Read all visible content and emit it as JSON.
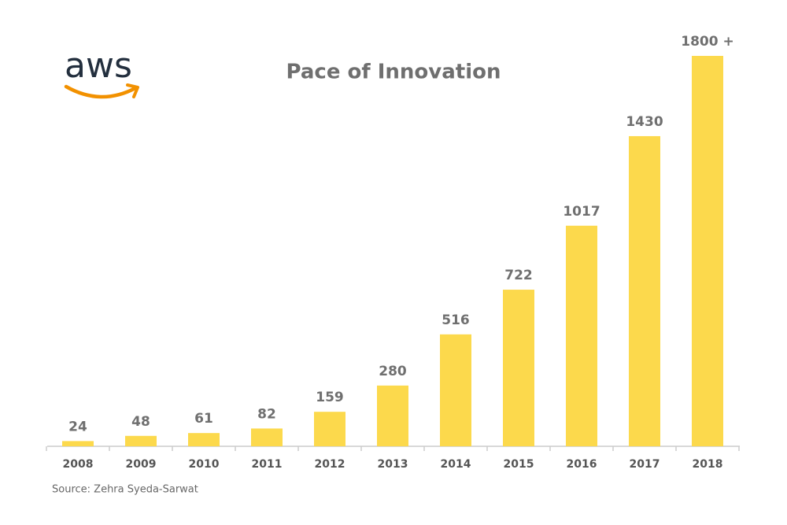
{
  "chart_data": {
    "type": "bar",
    "title": "Pace of Innovation",
    "logo": "aws",
    "source": "Source: Zehra Syeda-Sarwat",
    "categories": [
      "2008",
      "2009",
      "2010",
      "2011",
      "2012",
      "2013",
      "2014",
      "2015",
      "2016",
      "2017",
      "2018"
    ],
    "values": [
      24,
      48,
      61,
      82,
      159,
      280,
      516,
      722,
      1017,
      1430,
      1800
    ],
    "value_labels": [
      "24",
      "48",
      "61",
      "82",
      "159",
      "280",
      "516",
      "722",
      "1017",
      "1430",
      "1800 +"
    ],
    "color": "#fcd94c"
  }
}
